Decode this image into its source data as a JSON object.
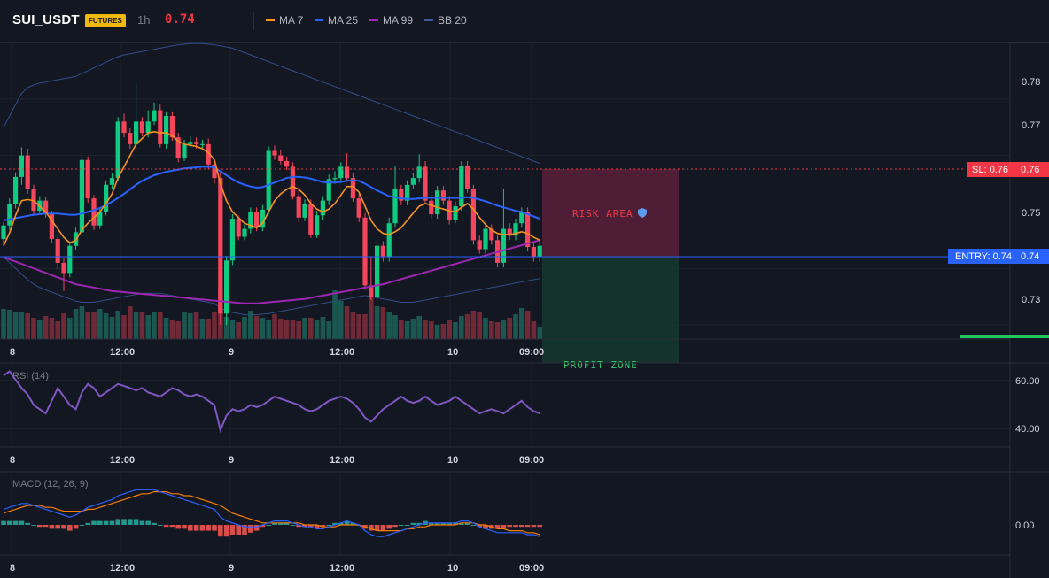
{
  "header": {
    "symbol": "SUI_USDT",
    "badge": "FUTURES",
    "timeframe": "1h",
    "last_price": "0.74",
    "indicators": [
      {
        "label": "MA 7",
        "color": "#f7931a"
      },
      {
        "label": "MA 25",
        "color": "#2962ff"
      },
      {
        "label": "MA 99",
        "color": "#9c27b0"
      },
      {
        "label": "BB 20",
        "color": "#3a5ba0"
      }
    ]
  },
  "colors": {
    "bull": "#0ecb81",
    "bear": "#f6465d",
    "ma7": "#f7931a",
    "ma25": "#2962ff",
    "ma99": "#9c27b0",
    "bb": "#3a5ba0",
    "rsi": "#7e57c2",
    "macd_line": "#2962ff",
    "signal_line": "#f57c00",
    "hist_pos": "#26a69a",
    "hist_neg": "#ef5350",
    "sl": "#f23645",
    "entry": "#2962ff",
    "tp": "#22c55e"
  },
  "price_axis": {
    "ticks": [
      "0.78",
      "0.77",
      "0.75",
      "0.73"
    ],
    "sl_label": "SL: 0.76",
    "sl_value": "0.76",
    "entry_label": "ENTRY: 0.74",
    "entry_value": "0.74"
  },
  "time_axis": [
    "8",
    "12:00",
    "9",
    "12:00",
    "10",
    "09:00"
  ],
  "zones": {
    "risk_label": "RISK AREA",
    "profit_label": "PROFIT ZONE"
  },
  "rsi": {
    "label": "RSI (14)",
    "ticks": [
      "60.00",
      "40.00"
    ]
  },
  "macd": {
    "label": "MACD (12, 26, 9)",
    "ticks": [
      "0.00"
    ]
  },
  "chart_data": {
    "type": "candlestick",
    "candles": [
      [
        0.7452,
        0.7476,
        0.7442,
        0.7482
      ],
      [
        0.7476,
        0.7514,
        0.7468,
        0.7524
      ],
      [
        0.7514,
        0.7562,
        0.7506,
        0.757
      ],
      [
        0.7562,
        0.76,
        0.7548,
        0.7614
      ],
      [
        0.76,
        0.754,
        0.7532,
        0.7612
      ],
      [
        0.754,
        0.7502,
        0.7494,
        0.7548
      ],
      [
        0.7502,
        0.752,
        0.7496,
        0.7528
      ],
      [
        0.752,
        0.7496,
        0.749,
        0.7526
      ],
      [
        0.7496,
        0.7452,
        0.7444,
        0.7502
      ],
      [
        0.7452,
        0.741,
        0.7398,
        0.746
      ],
      [
        0.741,
        0.7392,
        0.736,
        0.7418
      ],
      [
        0.7392,
        0.744,
        0.7384,
        0.7448
      ],
      [
        0.744,
        0.7464,
        0.7432,
        0.7472
      ],
      [
        0.7464,
        0.7592,
        0.7458,
        0.7602
      ],
      [
        0.7592,
        0.7524,
        0.7516,
        0.7598
      ],
      [
        0.7524,
        0.7476,
        0.7468,
        0.753
      ],
      [
        0.7476,
        0.75,
        0.747,
        0.7508
      ],
      [
        0.75,
        0.7548,
        0.7494,
        0.7556
      ],
      [
        0.7548,
        0.756,
        0.754,
        0.7568
      ],
      [
        0.756,
        0.766,
        0.7554,
        0.7668
      ],
      [
        0.766,
        0.764,
        0.7632,
        0.7674
      ],
      [
        0.764,
        0.762,
        0.7612,
        0.7648
      ],
      [
        0.762,
        0.766,
        0.7612,
        0.7728
      ],
      [
        0.766,
        0.764,
        0.7634,
        0.7668
      ],
      [
        0.764,
        0.766,
        0.7632,
        0.768
      ],
      [
        0.766,
        0.768,
        0.7654,
        0.7694
      ],
      [
        0.768,
        0.762,
        0.7614,
        0.769
      ],
      [
        0.762,
        0.767,
        0.7612,
        0.7678
      ],
      [
        0.767,
        0.7632,
        0.7626,
        0.7678
      ],
      [
        0.7632,
        0.7596,
        0.7588,
        0.764
      ],
      [
        0.7596,
        0.762,
        0.759,
        0.7628
      ],
      [
        0.762,
        0.7624,
        0.7614,
        0.7634
      ],
      [
        0.7624,
        0.762,
        0.7612,
        0.7632
      ],
      [
        0.762,
        0.762,
        0.7612,
        0.7628
      ],
      [
        0.762,
        0.7584,
        0.7576,
        0.763
      ],
      [
        0.7584,
        0.756,
        0.755,
        0.7592
      ],
      [
        0.756,
        0.732,
        0.73,
        0.7572
      ],
      [
        0.732,
        0.7414,
        0.73,
        0.7422
      ],
      [
        0.7414,
        0.7488,
        0.7406,
        0.7496
      ],
      [
        0.7488,
        0.7456,
        0.745,
        0.7494
      ],
      [
        0.7456,
        0.747,
        0.745,
        0.7478
      ],
      [
        0.747,
        0.75,
        0.7462,
        0.7508
      ],
      [
        0.75,
        0.7472,
        0.7466,
        0.7508
      ],
      [
        0.7472,
        0.7504,
        0.7466,
        0.7512
      ],
      [
        0.7504,
        0.7608,
        0.7496,
        0.7616
      ],
      [
        0.7608,
        0.76,
        0.7592,
        0.7618
      ],
      [
        0.76,
        0.759,
        0.7584,
        0.761
      ],
      [
        0.759,
        0.758,
        0.7574,
        0.7598
      ],
      [
        0.758,
        0.7528,
        0.7522,
        0.7588
      ],
      [
        0.7528,
        0.749,
        0.7482,
        0.7538
      ],
      [
        0.749,
        0.7514,
        0.7484,
        0.7522
      ],
      [
        0.7514,
        0.746,
        0.7454,
        0.7522
      ],
      [
        0.746,
        0.7494,
        0.7454,
        0.7502
      ],
      [
        0.7494,
        0.752,
        0.7486,
        0.7528
      ],
      [
        0.752,
        0.7558,
        0.7512,
        0.7566
      ],
      [
        0.7558,
        0.756,
        0.755,
        0.7572
      ],
      [
        0.756,
        0.758,
        0.7552,
        0.7588
      ],
      [
        0.758,
        0.756,
        0.7554,
        0.7604
      ],
      [
        0.756,
        0.7524,
        0.7518,
        0.7568
      ],
      [
        0.7524,
        0.749,
        0.7482,
        0.7532
      ],
      [
        0.749,
        0.737,
        0.7362,
        0.7498
      ],
      [
        0.737,
        0.735,
        0.7344,
        0.742
      ],
      [
        0.735,
        0.744,
        0.7342,
        0.7448
      ],
      [
        0.744,
        0.742,
        0.7412,
        0.7448
      ],
      [
        0.742,
        0.748,
        0.7412,
        0.749
      ],
      [
        0.748,
        0.754,
        0.7472,
        0.7582
      ],
      [
        0.754,
        0.752,
        0.7512,
        0.7548
      ],
      [
        0.752,
        0.7548,
        0.7512,
        0.7556
      ],
      [
        0.7548,
        0.756,
        0.754,
        0.7568
      ],
      [
        0.756,
        0.758,
        0.7552,
        0.7602
      ],
      [
        0.758,
        0.752,
        0.7514,
        0.759
      ],
      [
        0.752,
        0.7496,
        0.7488,
        0.7528
      ],
      [
        0.7496,
        0.7538,
        0.7488,
        0.7546
      ],
      [
        0.7538,
        0.752,
        0.7512,
        0.7546
      ],
      [
        0.752,
        0.7486,
        0.7478,
        0.7528
      ],
      [
        0.7486,
        0.751,
        0.748,
        0.7518
      ],
      [
        0.751,
        0.7582,
        0.7502,
        0.759
      ],
      [
        0.7582,
        0.754,
        0.7534,
        0.759
      ],
      [
        0.754,
        0.745,
        0.7442,
        0.7548
      ],
      [
        0.745,
        0.7434,
        0.7426,
        0.7458
      ],
      [
        0.7434,
        0.747,
        0.7426,
        0.7478
      ],
      [
        0.747,
        0.745,
        0.7442,
        0.7478
      ],
      [
        0.745,
        0.741,
        0.7402,
        0.7458
      ],
      [
        0.741,
        0.747,
        0.7402,
        0.754
      ],
      [
        0.747,
        0.7458,
        0.745,
        0.748
      ],
      [
        0.7458,
        0.748,
        0.745,
        0.7488
      ],
      [
        0.748,
        0.75,
        0.7472,
        0.7508
      ],
      [
        0.75,
        0.7438,
        0.743,
        0.7508
      ],
      [
        0.7438,
        0.742,
        0.7412,
        0.7446
      ],
      [
        0.742,
        0.744,
        0.7412,
        0.7448
      ]
    ],
    "volume": [
      34,
      33,
      31,
      30,
      29,
      24,
      22,
      26,
      24,
      20,
      29,
      24,
      34,
      37,
      30,
      30,
      34,
      29,
      25,
      32,
      27,
      37,
      31,
      30,
      27,
      31,
      31,
      24,
      22,
      20,
      31,
      29,
      30,
      23,
      23,
      30,
      56,
      25,
      22,
      19,
      25,
      32,
      26,
      24,
      22,
      28,
      23,
      22,
      21,
      20,
      24,
      24,
      22,
      25,
      20,
      55,
      43,
      37,
      30,
      28,
      28,
      48,
      37,
      36,
      30,
      27,
      22,
      20,
      23,
      26,
      22,
      20,
      16,
      17,
      22,
      19,
      26,
      28,
      32,
      30,
      24,
      20,
      19,
      21,
      24,
      28,
      35,
      32,
      20,
      14
    ],
    "ma7": [
      0.744,
      0.7463,
      0.7494,
      0.752,
      0.7522,
      0.752,
      0.751,
      0.75,
      0.7485,
      0.747,
      0.7455,
      0.7445,
      0.745,
      0.7468,
      0.748,
      0.749,
      0.75,
      0.7515,
      0.7532,
      0.756,
      0.758,
      0.76,
      0.762,
      0.763,
      0.764,
      0.7642,
      0.764,
      0.764,
      0.7635,
      0.7625,
      0.762,
      0.7618,
      0.7616,
      0.7612,
      0.7605,
      0.7592,
      0.755,
      0.752,
      0.75,
      0.749,
      0.748,
      0.7476,
      0.7472,
      0.748,
      0.75,
      0.752,
      0.7532,
      0.754,
      0.7545,
      0.754,
      0.753,
      0.7515,
      0.7505,
      0.75,
      0.7505,
      0.7515,
      0.753,
      0.7545,
      0.7545,
      0.7535,
      0.751,
      0.7485,
      0.747,
      0.7462,
      0.746,
      0.7465,
      0.7472,
      0.7485,
      0.7498,
      0.751,
      0.7515,
      0.7512,
      0.7508,
      0.7505,
      0.7502,
      0.75,
      0.7508,
      0.7515,
      0.7505,
      0.749,
      0.7478,
      0.7468,
      0.7462,
      0.746,
      0.746,
      0.7462,
      0.7465,
      0.7462,
      0.7455,
      0.745
    ],
    "ma25": [
      0.7485,
      0.7487,
      0.7489,
      0.7491,
      0.7493,
      0.7495,
      0.7496,
      0.7497,
      0.7497,
      0.7497,
      0.7496,
      0.7495,
      0.7495,
      0.7497,
      0.75,
      0.7503,
      0.7507,
      0.7512,
      0.7518,
      0.7525,
      0.7532,
      0.754,
      0.7548,
      0.7555,
      0.756,
      0.7565,
      0.7568,
      0.7571,
      0.7573,
      0.7575,
      0.7577,
      0.7578,
      0.7579,
      0.758,
      0.758,
      0.7579,
      0.7572,
      0.7565,
      0.7558,
      0.7552,
      0.7548,
      0.7545,
      0.7543,
      0.7544,
      0.7548,
      0.7552,
      0.7556,
      0.756,
      0.7562,
      0.7562,
      0.7561,
      0.7559,
      0.7556,
      0.7553,
      0.7552,
      0.7552,
      0.7553,
      0.7555,
      0.7556,
      0.7555,
      0.755,
      0.7544,
      0.7538,
      0.7533,
      0.7528,
      0.7526,
      0.7524,
      0.7523,
      0.7523,
      0.7524,
      0.7525,
      0.7525,
      0.7525,
      0.7525,
      0.7525,
      0.7525,
      0.7525,
      0.7526,
      0.7525,
      0.7522,
      0.7519,
      0.7515,
      0.7511,
      0.7508,
      0.7505,
      0.7502,
      0.75,
      0.7496,
      0.7492,
      0.7488
    ],
    "ma99": [
      0.742,
      0.7416,
      0.7412,
      0.7408,
      0.7404,
      0.74,
      0.7396,
      0.7392,
      0.7388,
      0.7384,
      0.738,
      0.7376,
      0.7372,
      0.737,
      0.7368,
      0.7366,
      0.7364,
      0.7362,
      0.736,
      0.7359,
      0.7358,
      0.7357,
      0.7356,
      0.7355,
      0.7354,
      0.7353,
      0.7352,
      0.7351,
      0.735,
      0.7349,
      0.7348,
      0.7347,
      0.7346,
      0.7345,
      0.7344,
      0.7343,
      0.7342,
      0.7341,
      0.734,
      0.7339,
      0.7338,
      0.7338,
      0.7338,
      0.7339,
      0.734,
      0.7341,
      0.7342,
      0.7343,
      0.7344,
      0.7345,
      0.7346,
      0.7348,
      0.735,
      0.7352,
      0.7354,
      0.7356,
      0.7358,
      0.736,
      0.7362,
      0.7364,
      0.7366,
      0.7368,
      0.737,
      0.7372,
      0.7375,
      0.7378,
      0.7381,
      0.7384,
      0.7387,
      0.739,
      0.7393,
      0.7396,
      0.7399,
      0.7402,
      0.7405,
      0.7408,
      0.7411,
      0.7414,
      0.7417,
      0.742,
      0.7423,
      0.7426,
      0.7429,
      0.7432,
      0.7435,
      0.7438,
      0.7441,
      0.7444,
      0.7447,
      0.745
    ],
    "bb_upper": [
      0.765,
      0.767,
      0.769,
      0.771,
      0.772,
      0.7725,
      0.7728,
      0.773,
      0.7732,
      0.7734,
      0.7736,
      0.7738,
      0.774,
      0.7745,
      0.775,
      0.7755,
      0.776,
      0.7765,
      0.777,
      0.7775,
      0.7778,
      0.778,
      0.7782,
      0.7784,
      0.7786,
      0.7788,
      0.779,
      0.7792,
      0.7794,
      0.7796,
      0.7797,
      0.7798,
      0.7798,
      0.7798,
      0.7797,
      0.7796,
      0.7794,
      0.7792,
      0.779,
      0.7786,
      0.7782,
      0.7778,
      0.7774,
      0.777,
      0.7766,
      0.7762,
      0.7758,
      0.7754,
      0.775,
      0.7746,
      0.7742,
      0.7738,
      0.7734,
      0.773,
      0.7726,
      0.7722,
      0.7718,
      0.7714,
      0.771,
      0.7706,
      0.7702,
      0.7698,
      0.7694,
      0.769,
      0.7686,
      0.7682,
      0.7678,
      0.7674,
      0.767,
      0.7666,
      0.7662,
      0.7658,
      0.7654,
      0.765,
      0.7646,
      0.7642,
      0.7638,
      0.7634,
      0.763,
      0.7626,
      0.7622,
      0.7618,
      0.7614,
      0.761,
      0.7606,
      0.7602,
      0.7598,
      0.7594,
      0.759,
      0.7586
    ],
    "bb_lower": [
      0.742,
      0.741,
      0.74,
      0.739,
      0.738,
      0.7372,
      0.7366,
      0.7362,
      0.7358,
      0.7354,
      0.735,
      0.7346,
      0.7342,
      0.734,
      0.734,
      0.734,
      0.7342,
      0.7344,
      0.7346,
      0.7348,
      0.735,
      0.7352,
      0.7354,
      0.7356,
      0.7356,
      0.7356,
      0.7356,
      0.7354,
      0.7352,
      0.735,
      0.7348,
      0.7346,
      0.7344,
      0.7342,
      0.734,
      0.7338,
      0.733,
      0.7325,
      0.7322,
      0.732,
      0.7318,
      0.7318,
      0.7318,
      0.7319,
      0.732,
      0.7322,
      0.7324,
      0.7326,
      0.7328,
      0.733,
      0.7332,
      0.7334,
      0.7336,
      0.7338,
      0.734,
      0.7342,
      0.7344,
      0.7346,
      0.7348,
      0.735,
      0.7352,
      0.735,
      0.7348,
      0.7346,
      0.7344,
      0.7342,
      0.734,
      0.734,
      0.734,
      0.7342,
      0.7344,
      0.7346,
      0.7348,
      0.735,
      0.7352,
      0.7354,
      0.7356,
      0.7358,
      0.736,
      0.7362,
      0.7364,
      0.7366,
      0.7368,
      0.737,
      0.7372,
      0.7374,
      0.7376,
      0.7378,
      0.738,
      0.7382
    ],
    "rsi": [
      64,
      66,
      62,
      58,
      55,
      50,
      48,
      46,
      52,
      58,
      54,
      50,
      48,
      56,
      60,
      58,
      54,
      56,
      58,
      60,
      59,
      58,
      57,
      58,
      56,
      55,
      54,
      56,
      58,
      57,
      55,
      54,
      55,
      54,
      52,
      50,
      38,
      45,
      48,
      47,
      48,
      50,
      49,
      50,
      52,
      54,
      53,
      52,
      51,
      50,
      48,
      47,
      48,
      50,
      52,
      53,
      54,
      53,
      51,
      48,
      44,
      42,
      45,
      48,
      50,
      52,
      54,
      52,
      51,
      52,
      54,
      52,
      50,
      51,
      52,
      54,
      52,
      50,
      48,
      46,
      47,
      48,
      47,
      46,
      48,
      50,
      52,
      49,
      47,
      46
    ],
    "macd": [
      0.0008,
      0.0009,
      0.001,
      0.0011,
      0.0011,
      0.001,
      0.0009,
      0.0008,
      0.0007,
      0.0006,
      0.0005,
      0.0004,
      0.0005,
      0.0007,
      0.0009,
      0.001,
      0.0011,
      0.0012,
      0.0013,
      0.0015,
      0.0016,
      0.0017,
      0.0018,
      0.0018,
      0.0018,
      0.0018,
      0.0017,
      0.0016,
      0.0015,
      0.0014,
      0.0013,
      0.0012,
      0.0011,
      0.001,
      0.0009,
      0.0008,
      0.0004,
      0.0002,
      0.0001,
      0.0,
      -0.0001,
      -0.0001,
      -0.0001,
      -0.0,
      0.0001,
      0.0002,
      0.0002,
      0.0002,
      0.0001,
      0.0,
      -0.0001,
      -0.0001,
      -0.0002,
      -0.0002,
      -0.0001,
      -0.0,
      0.0001,
      0.0002,
      0.0001,
      0.0,
      -0.0003,
      -0.0005,
      -0.0006,
      -0.0006,
      -0.0005,
      -0.0004,
      -0.0003,
      -0.0002,
      -0.0001,
      0.0,
      0.0001,
      0.0001,
      0.0001,
      0.0001,
      0.0001,
      0.0001,
      0.0002,
      0.0002,
      0.0001,
      -0.0001,
      -0.0002,
      -0.0003,
      -0.0004,
      -0.0004,
      -0.0004,
      -0.0004,
      -0.0004,
      -0.0005,
      -0.0005,
      -0.0006
    ],
    "signal": [
      0.0006,
      0.0007,
      0.0008,
      0.0009,
      0.001,
      0.001,
      0.001,
      0.0009,
      0.0009,
      0.0008,
      0.0007,
      0.0007,
      0.0007,
      0.0007,
      0.0008,
      0.0008,
      0.0009,
      0.001,
      0.0011,
      0.0012,
      0.0013,
      0.0014,
      0.0015,
      0.0016,
      0.0016,
      0.0017,
      0.0017,
      0.0017,
      0.0016,
      0.0016,
      0.0015,
      0.0015,
      0.0014,
      0.0013,
      0.0012,
      0.0011,
      0.001,
      0.0008,
      0.0006,
      0.0005,
      0.0004,
      0.0003,
      0.0002,
      0.0001,
      0.0001,
      0.0001,
      0.0001,
      0.0001,
      0.0001,
      0.0001,
      0.0,
      0.0,
      -0.0,
      -0.0001,
      -0.0001,
      -0.0001,
      -0.0,
      0.0,
      0.0,
      0.0,
      -0.0001,
      -0.0002,
      -0.0003,
      -0.0003,
      -0.0003,
      -0.0003,
      -0.0003,
      -0.0002,
      -0.0002,
      -0.0001,
      -0.0001,
      -0.0,
      0.0,
      0.0,
      0.0,
      0.0,
      0.0001,
      0.0001,
      0.0001,
      0.0,
      -0.0,
      -0.0001,
      -0.0002,
      -0.0002,
      -0.0003,
      -0.0003,
      -0.0003,
      -0.0004,
      -0.0004,
      -0.0005
    ],
    "price_range": [
      0.7275,
      0.78
    ],
    "rsi_range": [
      30,
      70
    ]
  }
}
